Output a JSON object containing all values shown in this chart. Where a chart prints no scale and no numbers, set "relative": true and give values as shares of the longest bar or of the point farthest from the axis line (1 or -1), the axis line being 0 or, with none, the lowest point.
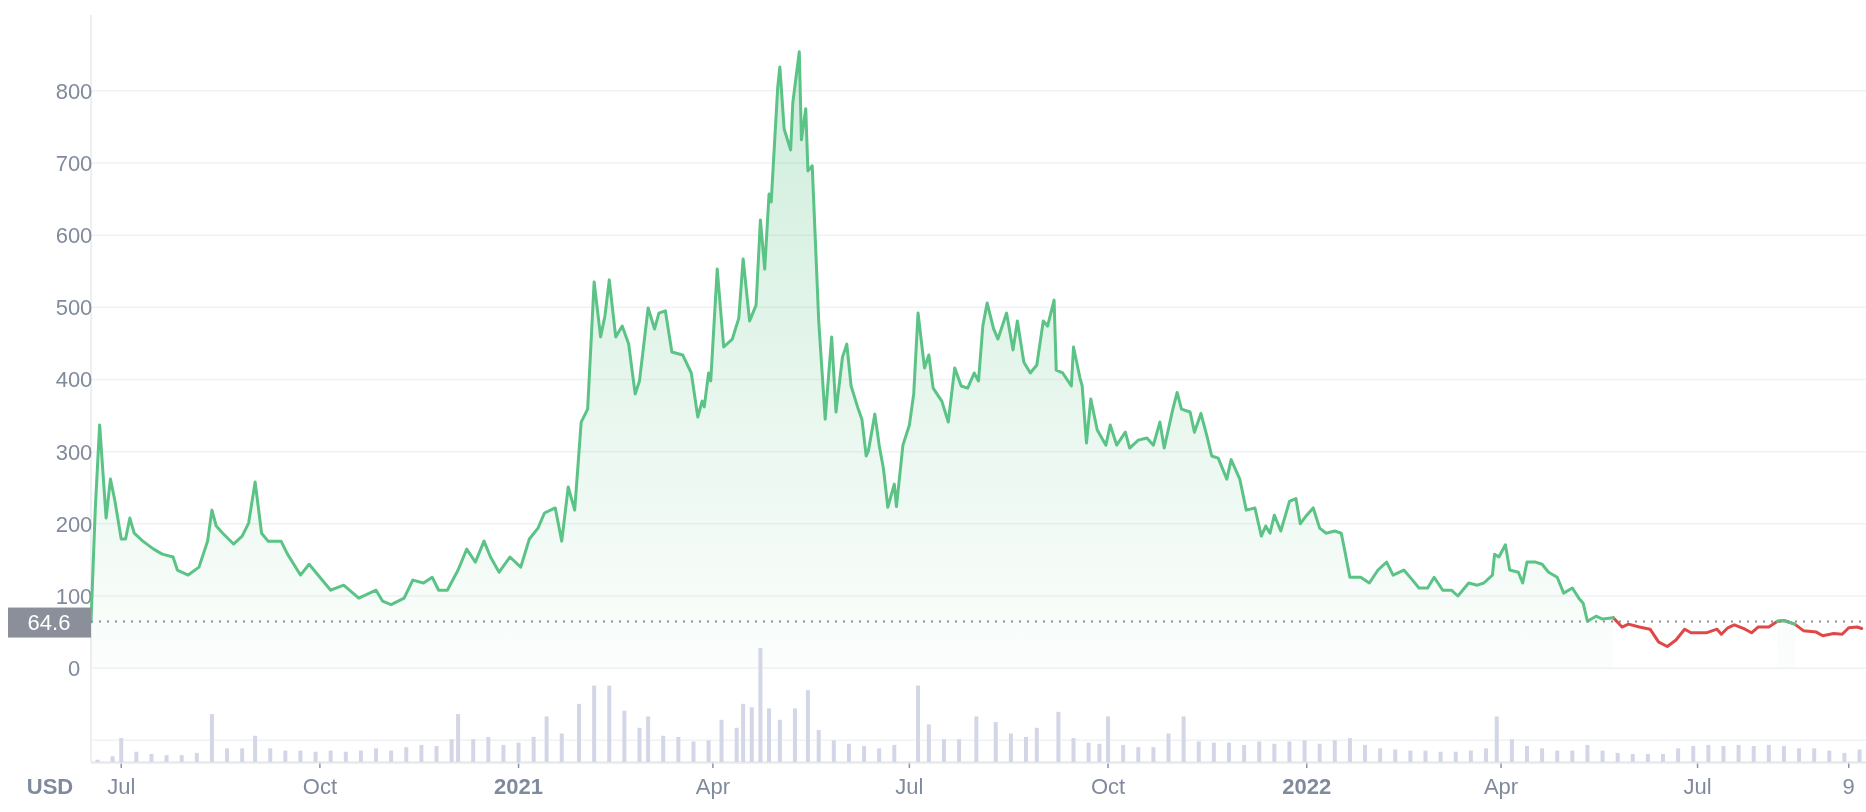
{
  "chart_data": [
    {
      "type": "line",
      "ylabel": "USD",
      "grid": "y",
      "xlim": [
        "2020-06-17",
        "2022-09-17"
      ],
      "ylim": [
        -130,
        905
      ],
      "xticks": [
        {
          "value": "2020-07-01",
          "label": "Jul"
        },
        {
          "value": "2020-10-01",
          "label": "Oct"
        },
        {
          "value": "2021-01-01",
          "label": "2021"
        },
        {
          "value": "2021-04-01",
          "label": "Apr"
        },
        {
          "value": "2021-07-01",
          "label": "Jul"
        },
        {
          "value": "2021-10-01",
          "label": "Oct"
        },
        {
          "value": "2022-01-01",
          "label": "2022"
        },
        {
          "value": "2022-04-01",
          "label": "Apr"
        },
        {
          "value": "2022-07-01",
          "label": "Jul"
        },
        {
          "value": "2022-09-09",
          "label": "9"
        }
      ],
      "yticks": [
        {
          "value": -100,
          "label": null
        },
        0,
        100,
        200,
        300,
        400,
        500,
        600,
        700,
        800
      ],
      "ref_lines": [
        {
          "axis": "y",
          "value": 64.6,
          "label": "64.6",
          "color": "#8a8f99",
          "line_style": "dotted"
        }
      ],
      "series": [
        {
          "type": "line",
          "color": "#e04848",
          "x": [
            "2022-05-23",
            "2022-05-27",
            "2022-05-30",
            "2022-06-04",
            "2022-06-09",
            "2022-06-13",
            "2022-06-17",
            "2022-06-21",
            "2022-06-25",
            "2022-06-28",
            "2022-07-05",
            "2022-07-10",
            "2022-07-12",
            "2022-07-15",
            "2022-07-18",
            "2022-07-23",
            "2022-07-26",
            "2022-07-29",
            "2022-08-03",
            "2022-08-07",
            "2022-08-10",
            "2022-08-15",
            "2022-08-19",
            "2022-08-25",
            "2022-08-28",
            "2022-09-02",
            "2022-09-06",
            "2022-09-09",
            "2022-09-13",
            "2022-09-15"
          ],
          "values": [
            70,
            57,
            61,
            57,
            54,
            36,
            30,
            39,
            54,
            49,
            49,
            54,
            47,
            56,
            60,
            54,
            49,
            57,
            57,
            65,
            66,
            61,
            52,
            50,
            45,
            48,
            47,
            56,
            57,
            55
          ]
        },
        {
          "type": "area",
          "color": "#5bc386",
          "x": [
            "2020-06-17",
            "2020-06-19",
            "2020-06-21",
            "2020-06-24",
            "2020-06-26",
            "2020-06-28",
            "2020-07-01",
            "2020-07-03",
            "2020-07-05",
            "2020-07-07",
            "2020-07-11",
            "2020-07-16",
            "2020-07-20",
            "2020-07-25",
            "2020-07-27",
            "2020-08-01",
            "2020-08-06",
            "2020-08-10",
            "2020-08-12",
            "2020-08-14",
            "2020-08-17",
            "2020-08-22",
            "2020-08-26",
            "2020-08-29",
            "2020-09-01",
            "2020-09-04",
            "2020-09-07",
            "2020-09-13",
            "2020-09-16",
            "2020-09-22",
            "2020-09-26",
            "2020-10-01",
            "2020-10-06",
            "2020-10-12",
            "2020-10-19",
            "2020-10-24",
            "2020-10-27",
            "2020-10-30",
            "2020-11-03",
            "2020-11-09",
            "2020-11-13",
            "2020-11-18",
            "2020-11-22",
            "2020-11-25",
            "2020-11-29",
            "2020-12-04",
            "2020-12-08",
            "2020-12-12",
            "2020-12-16",
            "2020-12-19",
            "2020-12-23",
            "2020-12-28",
            "2021-01-02",
            "2021-01-06",
            "2021-01-10",
            "2021-01-13",
            "2021-01-18",
            "2021-01-21",
            "2021-01-24",
            "2021-01-27",
            "2021-01-30",
            "2021-02-02",
            "2021-02-05",
            "2021-02-08",
            "2021-02-10",
            "2021-02-12",
            "2021-02-15",
            "2021-02-18",
            "2021-02-21",
            "2021-02-24",
            "2021-02-26",
            "2021-03-02",
            "2021-03-05",
            "2021-03-07",
            "2021-03-10",
            "2021-03-13",
            "2021-03-18",
            "2021-03-22",
            "2021-03-25",
            "2021-03-27",
            "2021-03-28",
            "2021-03-30",
            "2021-03-31",
            "2021-04-03",
            "2021-04-06",
            "2021-04-10",
            "2021-04-13",
            "2021-04-15",
            "2021-04-18",
            "2021-04-21",
            "2021-04-23",
            "2021-04-25",
            "2021-04-27",
            "2021-04-28",
            "2021-05-01",
            "2021-05-02",
            "2021-05-04",
            "2021-05-07",
            "2021-05-08",
            "2021-05-11",
            "2021-05-12",
            "2021-05-14",
            "2021-05-15",
            "2021-05-17",
            "2021-05-19",
            "2021-05-20",
            "2021-05-23",
            "2021-05-26",
            "2021-05-28",
            "2021-05-31",
            "2021-06-02",
            "2021-06-04",
            "2021-06-07",
            "2021-06-09",
            "2021-06-11",
            "2021-06-12",
            "2021-06-15",
            "2021-06-17",
            "2021-06-19",
            "2021-06-21",
            "2021-06-24",
            "2021-06-25",
            "2021-06-28",
            "2021-07-01",
            "2021-07-03",
            "2021-07-05",
            "2021-07-08",
            "2021-07-10",
            "2021-07-12",
            "2021-07-16",
            "2021-07-19",
            "2021-07-22",
            "2021-07-25",
            "2021-07-28",
            "2021-07-31",
            "2021-08-02",
            "2021-08-04",
            "2021-08-06",
            "2021-08-09",
            "2021-08-11",
            "2021-08-15",
            "2021-08-18",
            "2021-08-20",
            "2021-08-23",
            "2021-08-26",
            "2021-08-29",
            "2021-09-01",
            "2021-09-03",
            "2021-09-06",
            "2021-09-07",
            "2021-09-10",
            "2021-09-14",
            "2021-09-15",
            "2021-09-18",
            "2021-09-19",
            "2021-09-21",
            "2021-09-23",
            "2021-09-26",
            "2021-09-30",
            "2021-10-02",
            "2021-10-05",
            "2021-10-09",
            "2021-10-11",
            "2021-10-15",
            "2021-10-19",
            "2021-10-22",
            "2021-10-25",
            "2021-10-27",
            "2021-10-31",
            "2021-11-02",
            "2021-11-04",
            "2021-11-08",
            "2021-11-10",
            "2021-11-13",
            "2021-11-16",
            "2021-11-18",
            "2021-11-21",
            "2021-11-25",
            "2021-11-27",
            "2021-12-01",
            "2021-12-04",
            "2021-12-08",
            "2021-12-11",
            "2021-12-13",
            "2021-12-15",
            "2021-12-17",
            "2021-12-20",
            "2021-12-24",
            "2021-12-27",
            "2021-12-29",
            "2022-01-01",
            "2022-01-04",
            "2022-01-07",
            "2022-01-10",
            "2022-01-14",
            "2022-01-17",
            "2022-01-18",
            "2022-01-21",
            "2022-01-26",
            "2022-01-30",
            "2022-02-03",
            "2022-02-07",
            "2022-02-10",
            "2022-02-15",
            "2022-02-19",
            "2022-02-22",
            "2022-02-26",
            "2022-03-01",
            "2022-03-05",
            "2022-03-09",
            "2022-03-12",
            "2022-03-17",
            "2022-03-21",
            "2022-03-24",
            "2022-03-28",
            "2022-03-29",
            "2022-03-31",
            "2022-04-03",
            "2022-04-05",
            "2022-04-09",
            "2022-04-11",
            "2022-04-13",
            "2022-04-17",
            "2022-04-20",
            "2022-04-23",
            "2022-04-27",
            "2022-04-30",
            "2022-05-04",
            "2022-05-07",
            "2022-05-09",
            "2022-05-11",
            "2022-05-15",
            "2022-05-18",
            "2022-05-23",
            "2022-06-01",
            "2022-08-07",
            "2022-08-10",
            "2022-08-15"
          ],
          "values": [
            64,
            222,
            337,
            208,
            262,
            233,
            179,
            179,
            208,
            187,
            176,
            165,
            158,
            154,
            136,
            129,
            140,
            176,
            219,
            197,
            187,
            172,
            183,
            201,
            258,
            187,
            176,
            176,
            158,
            129,
            144,
            126,
            108,
            115,
            97,
            104,
            108,
            93,
            88,
            97,
            122,
            118,
            126,
            108,
            108,
            136,
            165,
            147,
            176,
            154,
            133,
            154,
            140,
            179,
            194,
            215,
            222,
            176,
            251,
            219,
            341,
            359,
            535,
            459,
            488,
            538,
            459,
            474,
            449,
            380,
            398,
            499,
            470,
            492,
            495,
            438,
            434,
            409,
            348,
            370,
            362,
            409,
            398,
            553,
            445,
            456,
            485,
            567,
            481,
            503,
            621,
            553,
            657,
            646,
            804,
            833,
            747,
            718,
            783,
            854,
            732,
            775,
            689,
            696,
            553,
            481,
            345,
            459,
            355,
            431,
            449,
            391,
            362,
            345,
            294,
            301,
            352,
            309,
            276,
            223,
            255,
            224,
            309,
            337,
            380,
            492,
            416,
            434,
            388,
            370,
            341,
            416,
            391,
            388,
            409,
            398,
            474,
            506,
            470,
            456,
            492,
            441,
            481,
            424,
            409,
            420,
            481,
            474,
            510,
            413,
            409,
            391,
            445,
            402,
            391,
            312,
            373,
            330,
            309,
            337,
            309,
            327,
            305,
            316,
            319,
            309,
            341,
            305,
            359,
            382,
            359,
            355,
            327,
            353,
            319,
            294,
            291,
            262,
            289,
            262,
            219,
            222,
            183,
            197,
            187,
            212,
            190,
            231,
            235,
            200,
            212,
            222,
            194,
            187,
            190,
            187,
            172,
            126,
            126,
            118,
            136,
            147,
            129,
            136,
            122,
            111,
            111,
            126,
            108,
            108,
            100,
            118,
            115,
            118,
            129,
            158,
            154,
            171,
            136,
            133,
            118,
            147,
            147,
            144,
            133,
            126,
            104,
            111,
            97,
            90,
            65,
            72,
            68,
            70,
            null,
            65,
            66,
            61
          ]
        }
      ]
    },
    {
      "type": "bar",
      "relative": true,
      "color": "#d3d6e6",
      "xlim": [
        "2020-06-17",
        "2022-09-17"
      ],
      "x": [
        "2020-06-20",
        "2020-06-27",
        "2020-07-01",
        "2020-07-08",
        "2020-07-15",
        "2020-07-22",
        "2020-07-29",
        "2020-08-05",
        "2020-08-12",
        "2020-08-19",
        "2020-08-26",
        "2020-09-01",
        "2020-09-08",
        "2020-09-15",
        "2020-09-22",
        "2020-09-29",
        "2020-10-06",
        "2020-10-13",
        "2020-10-20",
        "2020-10-27",
        "2020-11-03",
        "2020-11-10",
        "2020-11-17",
        "2020-11-24",
        "2020-12-01",
        "2020-12-04",
        "2020-12-11",
        "2020-12-18",
        "2020-12-25",
        "2021-01-01",
        "2021-01-08",
        "2021-01-14",
        "2021-01-21",
        "2021-01-29",
        "2021-02-05",
        "2021-02-12",
        "2021-02-19",
        "2021-02-26",
        "2021-03-02",
        "2021-03-09",
        "2021-03-16",
        "2021-03-23",
        "2021-03-30",
        "2021-04-05",
        "2021-04-12",
        "2021-04-15",
        "2021-04-19",
        "2021-04-23",
        "2021-04-27",
        "2021-05-02",
        "2021-05-09",
        "2021-05-15",
        "2021-05-20",
        "2021-05-27",
        "2021-06-03",
        "2021-06-10",
        "2021-06-17",
        "2021-06-24",
        "2021-07-05",
        "2021-07-10",
        "2021-07-17",
        "2021-07-24",
        "2021-08-01",
        "2021-08-10",
        "2021-08-17",
        "2021-08-24",
        "2021-08-29",
        "2021-09-08",
        "2021-09-15",
        "2021-09-22",
        "2021-09-27",
        "2021-10-01",
        "2021-10-08",
        "2021-10-15",
        "2021-10-22",
        "2021-10-29",
        "2021-11-05",
        "2021-11-12",
        "2021-11-19",
        "2021-11-26",
        "2021-12-03",
        "2021-12-10",
        "2021-12-17",
        "2021-12-24",
        "2021-12-31",
        "2022-01-07",
        "2022-01-14",
        "2022-01-21",
        "2022-01-28",
        "2022-02-04",
        "2022-02-11",
        "2022-02-18",
        "2022-02-25",
        "2022-03-04",
        "2022-03-11",
        "2022-03-18",
        "2022-03-25",
        "2022-03-30",
        "2022-04-06",
        "2022-04-13",
        "2022-04-20",
        "2022-04-27",
        "2022-05-04",
        "2022-05-11",
        "2022-05-18",
        "2022-05-25",
        "2022-06-01",
        "2022-06-08",
        "2022-06-15",
        "2022-06-22",
        "2022-06-29",
        "2022-07-06",
        "2022-07-13",
        "2022-07-20",
        "2022-07-27",
        "2022-08-03",
        "2022-08-10",
        "2022-08-17",
        "2022-08-24",
        "2022-08-31",
        "2022-09-07",
        "2022-09-14"
      ],
      "values": [
        0.02,
        0.05,
        0.21,
        0.09,
        0.07,
        0.06,
        0.06,
        0.08,
        0.42,
        0.12,
        0.12,
        0.23,
        0.12,
        0.1,
        0.1,
        0.09,
        0.1,
        0.09,
        0.1,
        0.12,
        0.1,
        0.13,
        0.15,
        0.14,
        0.2,
        0.42,
        0.2,
        0.22,
        0.15,
        0.17,
        0.22,
        0.4,
        0.25,
        0.51,
        0.67,
        0.67,
        0.45,
        0.3,
        0.4,
        0.23,
        0.22,
        0.18,
        0.19,
        0.37,
        0.3,
        0.51,
        0.48,
        1,
        0.47,
        0.37,
        0.47,
        0.63,
        0.28,
        0.19,
        0.16,
        0.14,
        0.12,
        0.15,
        0.67,
        0.33,
        0.2,
        0.2,
        0.4,
        0.35,
        0.25,
        0.22,
        0.3,
        0.44,
        0.21,
        0.17,
        0.16,
        0.4,
        0.15,
        0.13,
        0.13,
        0.25,
        0.4,
        0.18,
        0.17,
        0.17,
        0.15,
        0.18,
        0.16,
        0.18,
        0.19,
        0.16,
        0.19,
        0.21,
        0.15,
        0.12,
        0.11,
        0.1,
        0.1,
        0.09,
        0.09,
        0.1,
        0.12,
        0.4,
        0.2,
        0.14,
        0.12,
        0.1,
        0.1,
        0.15,
        0.1,
        0.08,
        0.07,
        0.07,
        0.07,
        0.12,
        0.14,
        0.15,
        0.14,
        0.15,
        0.14,
        0.15,
        0.14,
        0.12,
        0.12,
        0.1,
        0.08,
        0.11
      ]
    }
  ]
}
